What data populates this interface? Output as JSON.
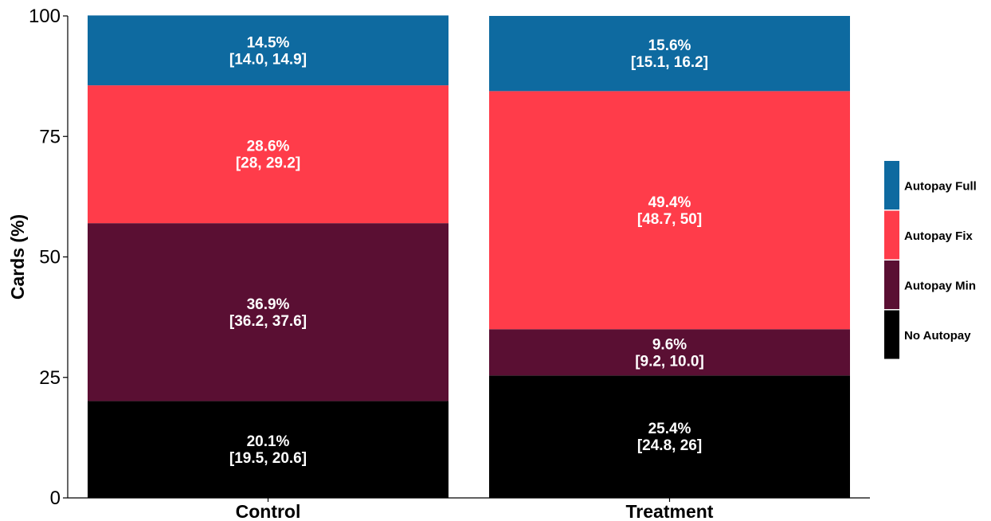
{
  "chart_data": {
    "type": "bar",
    "stacked": true,
    "categories": [
      "Control",
      "Treatment"
    ],
    "ylabel": "Cards (%)",
    "xlabel": "",
    "ylim": [
      0,
      100
    ],
    "yticks": [
      0,
      25,
      50,
      75,
      100
    ],
    "grid": false,
    "legend_position": "right",
    "series": [
      {
        "name": "No Autopay",
        "color": "#000000",
        "values": [
          20.1,
          25.4
        ],
        "labels": [
          "20.1%",
          "25.4%"
        ],
        "ci": [
          "[19.5, 20.6]",
          "[24.8, 26]"
        ]
      },
      {
        "name": "Autopay Min",
        "color": "#5a0f33",
        "values": [
          36.9,
          9.6
        ],
        "labels": [
          "36.9%",
          "9.6%"
        ],
        "ci": [
          "[36.2, 37.6]",
          "[9.2, 10.0]"
        ]
      },
      {
        "name": "Autopay Fix",
        "color": "#ff3c4a",
        "values": [
          28.6,
          49.4
        ],
        "labels": [
          "28.6%",
          "49.4%"
        ],
        "ci": [
          "[28, 29.2]",
          "[48.7, 50]"
        ]
      },
      {
        "name": "Autopay Full",
        "color": "#0e6aa0",
        "values": [
          14.5,
          15.6
        ],
        "labels": [
          "14.5%",
          "15.6%"
        ],
        "ci": [
          "[14.0, 14.9]",
          "[15.1, 16.2]"
        ]
      }
    ],
    "legend_order": [
      "Autopay Full",
      "Autopay Fix",
      "Autopay Min",
      "No Autopay"
    ]
  }
}
